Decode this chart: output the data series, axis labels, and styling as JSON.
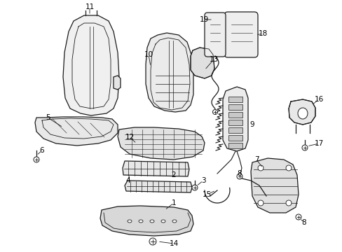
{
  "background_color": "#ffffff",
  "line_color": "#1a1a1a",
  "label_color": "#000000",
  "figsize": [
    4.89,
    3.6
  ],
  "dpi": 100
}
